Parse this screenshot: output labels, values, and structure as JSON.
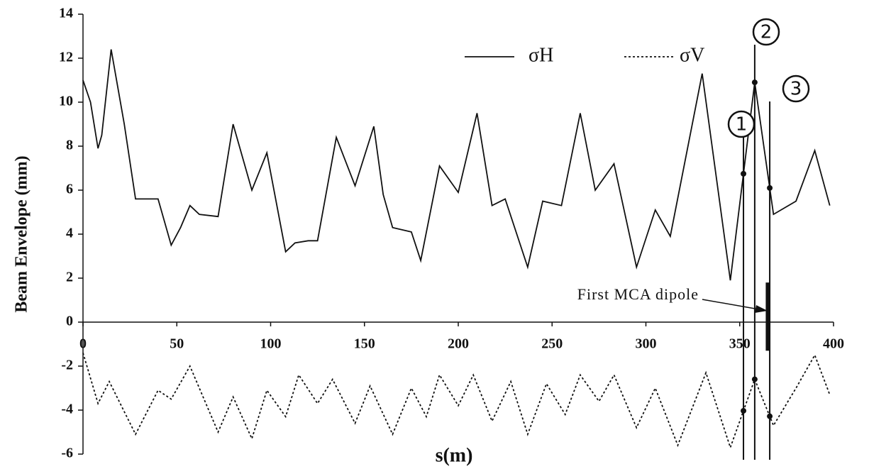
{
  "chart_data": {
    "type": "line",
    "ylabel": "Beam Envelope (mm)",
    "xlabel": "s(m)",
    "xlim": [
      0,
      400
    ],
    "xticks": [
      0,
      50,
      100,
      150,
      200,
      250,
      300,
      350,
      400
    ],
    "ylim": [
      -6,
      14
    ],
    "yticks": [
      -6,
      -4,
      -2,
      0,
      2,
      4,
      6,
      8,
      10,
      12,
      14
    ],
    "grid": false,
    "series": [
      {
        "name": "σH",
        "color": "#111111",
        "dash": "solid",
        "x": [
          0,
          4,
          8,
          10,
          15,
          22,
          28,
          35,
          40,
          47,
          52,
          57,
          62,
          72,
          80,
          90,
          98,
          108,
          113,
          120,
          125,
          135,
          145,
          155,
          160,
          165,
          175,
          180,
          190,
          200,
          210,
          218,
          225,
          237,
          245,
          255,
          265,
          273,
          283,
          295,
          305,
          313,
          330,
          345,
          358,
          368,
          380,
          390,
          398
        ],
        "values": [
          11,
          10,
          7.9,
          8.5,
          12.4,
          9,
          5.6,
          5.6,
          5.6,
          3.5,
          4.3,
          5.3,
          4.9,
          4.8,
          9,
          6,
          7.7,
          3.2,
          3.6,
          3.7,
          3.7,
          8.4,
          6.2,
          8.9,
          5.8,
          4.3,
          4.1,
          2.8,
          7.1,
          5.9,
          9.5,
          5.3,
          5.6,
          2.5,
          5.5,
          5.3,
          9.5,
          6,
          7.2,
          2.5,
          5.1,
          3.9,
          11.3,
          1.9,
          10.9,
          4.9,
          5.5,
          7.8,
          5.3
        ]
      },
      {
        "name": "σV",
        "color": "#111111",
        "dash": "dotted",
        "x": [
          0,
          8,
          14,
          28,
          40,
          47,
          57,
          72,
          80,
          90,
          98,
          108,
          115,
          125,
          133,
          145,
          153,
          165,
          175,
          183,
          190,
          200,
          208,
          218,
          228,
          237,
          247,
          257,
          265,
          275,
          283,
          295,
          305,
          317,
          332,
          345,
          358,
          368,
          380,
          390,
          398
        ],
        "values": [
          -1.4,
          -3.7,
          -2.7,
          -5.1,
          -3.1,
          -3.5,
          -2,
          -5,
          -3.4,
          -5.3,
          -3.1,
          -4.3,
          -2.4,
          -3.7,
          -2.6,
          -4.6,
          -2.9,
          -5.1,
          -3,
          -4.3,
          -2.4,
          -3.8,
          -2.4,
          -4.5,
          -2.7,
          -5.1,
          -2.8,
          -4.2,
          -2.4,
          -3.6,
          -2.4,
          -4.8,
          -3,
          -5.6,
          -2.3,
          -5.7,
          -2.6,
          -4.7,
          -3,
          -1.5,
          -3.3
        ]
      }
    ],
    "markers": [
      {
        "label": "1",
        "x": 352
      },
      {
        "label": "2",
        "x": 358
      },
      {
        "label": "3",
        "x": 366
      }
    ],
    "dipole": {
      "label": "First MCA dipole",
      "x": 365,
      "y": [
        1.8,
        -1.3
      ]
    }
  }
}
